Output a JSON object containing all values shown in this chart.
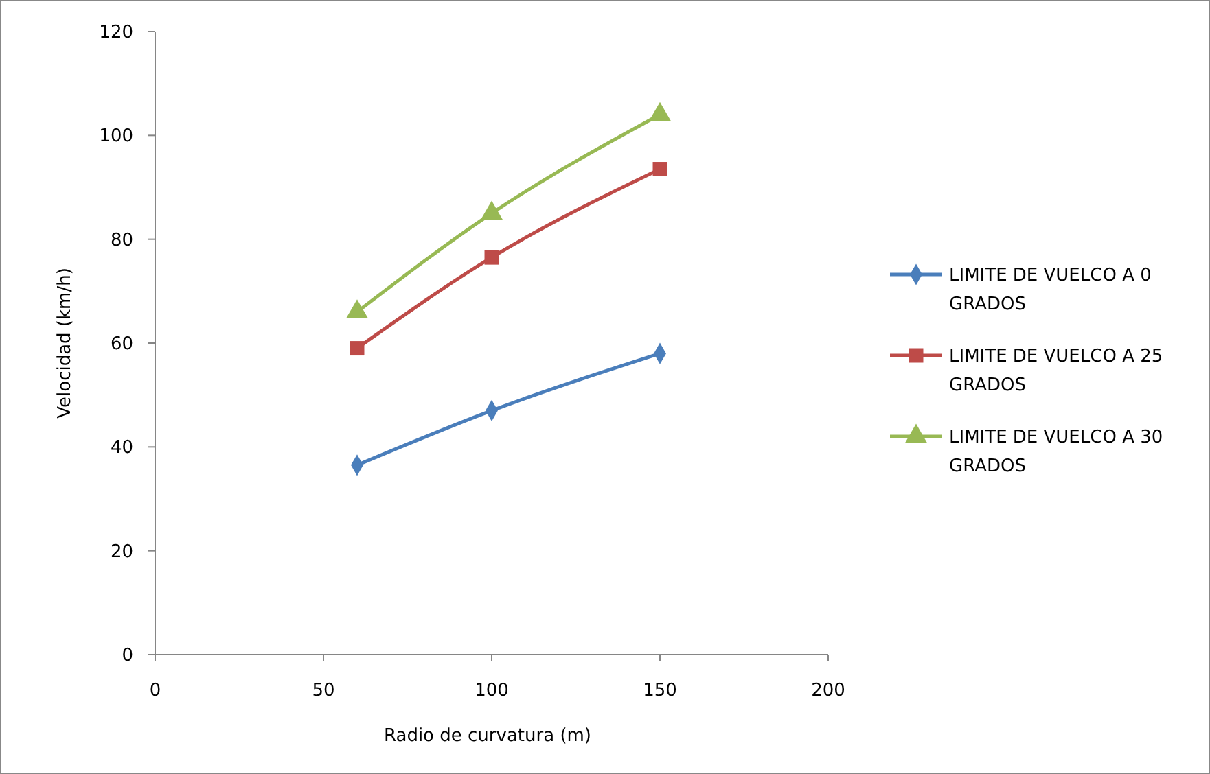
{
  "chart_data": {
    "type": "line",
    "xlabel": "Radio de curvatura (m)",
    "ylabel": "Velocidad (km/h)",
    "x": [
      60,
      100,
      150
    ],
    "series": [
      {
        "name": "LIMITE DE VUELCO A 0 GRADOS",
        "color": "#4a7ebb",
        "values": [
          36.5,
          47,
          58
        ],
        "marker": "diamond"
      },
      {
        "name": "LIMITE DE VUELCO A 25 GRADOS",
        "color": "#be4b48",
        "values": [
          59,
          76.5,
          93.5
        ],
        "marker": "square"
      },
      {
        "name": "LIMITE DE VUELCO A 30 GRADOS",
        "color": "#98b954",
        "values": [
          66,
          85,
          104
        ],
        "marker": "triangle"
      }
    ],
    "xlim": [
      0,
      200
    ],
    "xticks": [
      0,
      50,
      100,
      150,
      200
    ],
    "ylim": [
      0,
      120
    ],
    "yticks": [
      0,
      20,
      40,
      60,
      80,
      100,
      120
    ],
    "grid": false,
    "legend": "right",
    "line_style": "solid"
  }
}
